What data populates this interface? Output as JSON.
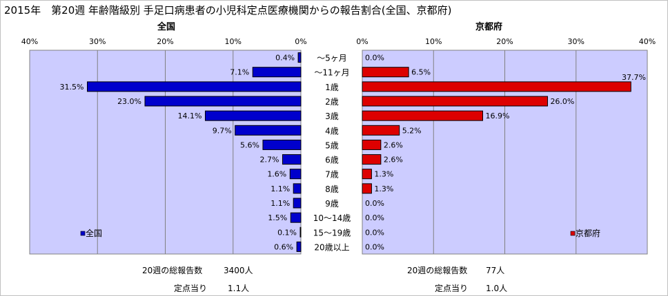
{
  "title": "2015年　第20週 年齢階級別 手足口病患者の小児科定点医療機関からの報告割合(全国、京都府)",
  "chart_data": {
    "type": "bar",
    "categories": [
      "～5ヶ月",
      "～11ヶ月",
      "1歳",
      "2歳",
      "3歳",
      "4歳",
      "5歳",
      "6歳",
      "7歳",
      "8歳",
      "9歳",
      "10～14歳",
      "15～19歳",
      "20歳以上"
    ],
    "panels": [
      {
        "title": "全国",
        "legend": "全国",
        "legend_position": "bottom-left",
        "color": "#0000cc",
        "direction": "left",
        "xlim": [
          0,
          40
        ],
        "ticks": [
          "40%",
          "30%",
          "20%",
          "10%",
          "0%"
        ],
        "values": [
          0.4,
          7.1,
          31.5,
          23.0,
          14.1,
          9.7,
          5.6,
          2.7,
          1.6,
          1.1,
          1.1,
          1.5,
          0.1,
          0.6
        ],
        "labels": [
          "0.4%",
          "7.1%",
          "31.5%",
          "23.0%",
          "14.1%",
          "9.7%",
          "5.6%",
          "2.7%",
          "1.6%",
          "1.1%",
          "1.1%",
          "1.5%",
          "0.1%",
          "0.6%"
        ]
      },
      {
        "title": "京都府",
        "legend": "京都府",
        "legend_position": "bottom-right",
        "color": "#dd0000",
        "direction": "right",
        "xlim": [
          0,
          40
        ],
        "ticks": [
          "0%",
          "10%",
          "20%",
          "30%",
          "40%"
        ],
        "values": [
          0.0,
          6.5,
          37.7,
          26.0,
          16.9,
          5.2,
          2.6,
          2.6,
          1.3,
          1.3,
          0.0,
          0.0,
          0.0,
          0.0
        ],
        "labels": [
          "0.0%",
          "6.5%",
          "37.7%",
          "26.0%",
          "16.9%",
          "5.2%",
          "2.6%",
          "2.6%",
          "1.3%",
          "1.3%",
          "0.0%",
          "0.0%",
          "0.0%",
          "0.0%"
        ]
      }
    ],
    "grid": true
  },
  "summary": {
    "national": {
      "total_label": "20週の総報告数",
      "total_value": "3400人",
      "per_label": "定点当り",
      "per_value": "1.1人"
    },
    "kyoto": {
      "total_label": "20週の総報告数",
      "total_value": "77人",
      "per_label": "定点当り",
      "per_value": "1.0人"
    }
  }
}
